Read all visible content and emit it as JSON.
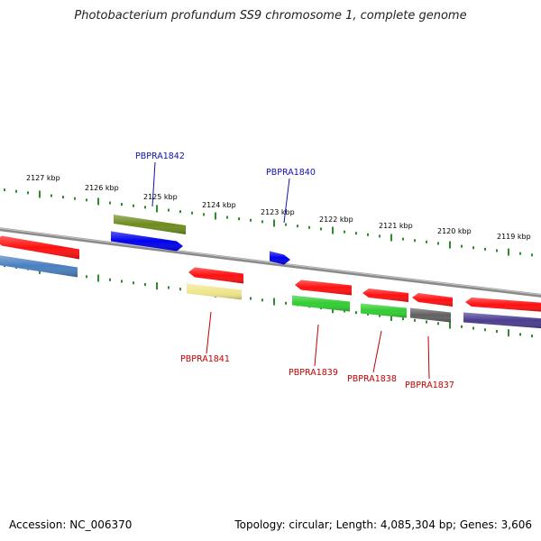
{
  "title": "Photobacterium profundum SS9 chromosome 1, complete genome",
  "footer": {
    "accession": "Accession: NC_006370",
    "summary": "Topology: circular; Length: 4,085,304 bp; Genes: 3,606"
  },
  "colors": {
    "backbone": "#8a8a8a",
    "tick": "#2e8b2e",
    "label_blue": "#1010b0",
    "label_red": "#c00000"
  },
  "ticks": [
    "2127 kbp",
    "2126 kbp",
    "2125 kbp",
    "2124 kbp",
    "2123 kbp",
    "2122 kbp",
    "2121 kbp",
    "2120 kbp",
    "2119 kbp"
  ],
  "genes": [
    {
      "name": "PBPRA1842",
      "color": "#0000ee",
      "strand": "top"
    },
    {
      "name": "PBPRA1840",
      "color": "#0000ee",
      "strand": "top"
    },
    {
      "name": "PBPRA1841",
      "color": "#ff1010",
      "strand": "bottom"
    },
    {
      "name": "PBPRA1839",
      "color": "#ff1010",
      "strand": "bottom"
    },
    {
      "name": "PBPRA1838",
      "color": "#ff1010",
      "strand": "bottom"
    },
    {
      "name": "PBPRA1837",
      "color": "#ff1010",
      "strand": "bottom"
    }
  ],
  "features": [
    {
      "type": "cds",
      "color": "#ff1010"
    },
    {
      "type": "cds",
      "color": "#4a7fbf"
    },
    {
      "type": "cds",
      "color": "#6e8b1e"
    },
    {
      "type": "cds",
      "color": "#0000ee"
    },
    {
      "type": "cds",
      "color": "#0000ee"
    },
    {
      "type": "cds",
      "color": "#ff1010"
    },
    {
      "type": "cds",
      "color": "#f0e68c"
    },
    {
      "type": "cds",
      "color": "#ff1010"
    },
    {
      "type": "cds",
      "color": "#32cd32"
    },
    {
      "type": "cds",
      "color": "#ff1010"
    },
    {
      "type": "cds",
      "color": "#32cd32"
    },
    {
      "type": "cds",
      "color": "#ff1010"
    },
    {
      "type": "cds",
      "color": "#606060"
    },
    {
      "type": "cds",
      "color": "#ff1010"
    },
    {
      "type": "cds",
      "color": "#4b3d8f"
    }
  ]
}
